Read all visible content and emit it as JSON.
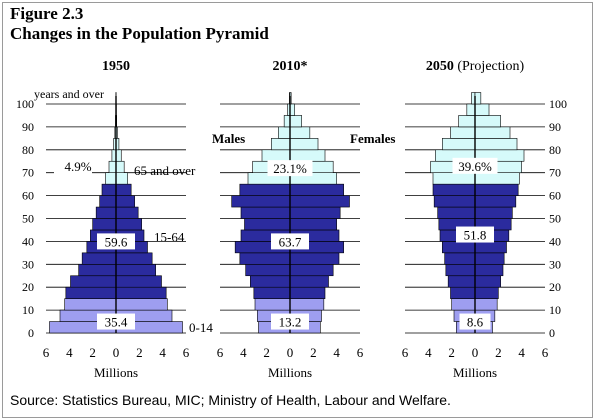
{
  "figure_label": "Figure 2.3",
  "title": "Changes in the Population Pyramid",
  "source": "Source:  Statistics Bureau, MIC;  Ministry of Health, Labour and Welfare.",
  "colors": {
    "age_0_14": "#9e9ef0",
    "age_15_64": "#2b2b9e",
    "age_65_over": "#d6fafa",
    "outline": "#000000"
  },
  "chart_data": [
    {
      "type": "bar",
      "subtype": "population-pyramid",
      "title": "1950",
      "title_suffix": "",
      "xlabel": "Millions",
      "x_ticks": [
        "6",
        "4",
        "2",
        "0",
        "2",
        "4",
        "6"
      ],
      "xlim": [
        -6,
        6
      ],
      "y_ticks": [
        "0",
        "10",
        "20",
        "30",
        "40",
        "50",
        "60",
        "70",
        "80",
        "90",
        "100"
      ],
      "y_tick_side": "left",
      "top_label": "years and over",
      "ylim": [
        0,
        100
      ],
      "grid": "horizontal",
      "age_bands": [
        0,
        5,
        10,
        15,
        20,
        25,
        30,
        35,
        40,
        45,
        50,
        55,
        60,
        65,
        70,
        75,
        80,
        85,
        90,
        95,
        100
      ],
      "males": [
        5.7,
        4.8,
        4.4,
        4.3,
        3.9,
        3.2,
        2.9,
        2.5,
        2.2,
        2.0,
        1.7,
        1.4,
        1.2,
        0.9,
        0.6,
        0.35,
        0.2,
        0.1,
        0.05,
        0.02,
        0.01
      ],
      "females": [
        5.7,
        4.8,
        4.4,
        4.3,
        3.9,
        3.4,
        3.1,
        2.7,
        2.4,
        2.2,
        1.9,
        1.6,
        1.3,
        1.0,
        0.7,
        0.45,
        0.25,
        0.12,
        0.06,
        0.03,
        0.01
      ],
      "shares": [
        {
          "group": "0-14",
          "percent": "35.4",
          "label": "0-14",
          "y": 5
        },
        {
          "group": "15-64",
          "percent": "59.6",
          "label": "15-64",
          "y": 40
        },
        {
          "group": "65 and over",
          "percent": "4.9%",
          "label": "65 and over",
          "y": 73
        }
      ],
      "side_labels": {
        "left": "",
        "right": ""
      }
    },
    {
      "type": "bar",
      "subtype": "population-pyramid",
      "title": "2010",
      "title_suffix": "*",
      "xlabel": "Millions",
      "x_ticks": [
        "6",
        "4",
        "2",
        "0",
        "2",
        "4",
        "6"
      ],
      "xlim": [
        -6,
        6
      ],
      "y_ticks": [],
      "y_tick_side": "none",
      "top_label": "",
      "ylim": [
        0,
        100
      ],
      "grid": "horizontal",
      "age_bands": [
        0,
        5,
        10,
        15,
        20,
        25,
        30,
        35,
        40,
        45,
        50,
        55,
        60,
        65,
        70,
        75,
        80,
        85,
        90,
        95,
        100
      ],
      "males": [
        2.7,
        2.8,
        3.0,
        3.1,
        3.4,
        3.8,
        4.3,
        4.7,
        4.2,
        3.9,
        4.2,
        5.0,
        4.3,
        3.6,
        3.2,
        2.4,
        1.6,
        1.0,
        0.5,
        0.2,
        0.05
      ],
      "females": [
        2.6,
        2.7,
        2.9,
        3.0,
        3.3,
        3.7,
        4.2,
        4.6,
        4.2,
        4.0,
        4.3,
        5.1,
        4.6,
        4.0,
        3.7,
        3.0,
        2.4,
        1.7,
        1.0,
        0.4,
        0.1
      ],
      "shares": [
        {
          "group": "0-14",
          "percent": "13.2",
          "label": "",
          "y": 5
        },
        {
          "group": "15-64",
          "percent": "63.7",
          "label": "",
          "y": 40
        },
        {
          "group": "65 and over",
          "percent": "23.1%",
          "label": "",
          "y": 72
        }
      ],
      "side_labels": {
        "left": "Males",
        "right": "Females"
      }
    },
    {
      "type": "bar",
      "subtype": "population-pyramid",
      "title": "2050",
      "title_suffix": " (Projection)",
      "xlabel": "Millions",
      "x_ticks": [
        "6",
        "4",
        "2",
        "0",
        "2",
        "4",
        "6"
      ],
      "xlim": [
        -6,
        6
      ],
      "y_ticks": [
        "0",
        "10",
        "20",
        "30",
        "40",
        "50",
        "60",
        "70",
        "80",
        "90",
        "100"
      ],
      "y_tick_side": "right",
      "top_label": "",
      "ylim": [
        0,
        100
      ],
      "grid": "horizontal",
      "age_bands": [
        0,
        5,
        10,
        15,
        20,
        25,
        30,
        35,
        40,
        45,
        50,
        55,
        60,
        65,
        70,
        75,
        80,
        85,
        90,
        95,
        100
      ],
      "males": [
        1.6,
        1.8,
        2.0,
        2.1,
        2.3,
        2.5,
        2.6,
        2.8,
        3.0,
        3.1,
        3.2,
        3.5,
        3.6,
        3.6,
        3.8,
        3.4,
        2.8,
        2.1,
        1.4,
        0.7,
        0.3
      ],
      "females": [
        1.5,
        1.7,
        1.9,
        2.0,
        2.2,
        2.4,
        2.5,
        2.7,
        2.9,
        3.1,
        3.2,
        3.5,
        3.7,
        3.8,
        4.0,
        4.2,
        3.6,
        3.0,
        2.2,
        1.2,
        0.5
      ],
      "shares": [
        {
          "group": "0-14",
          "percent": "8.6",
          "label": "",
          "y": 5
        },
        {
          "group": "15-64",
          "percent": "51.8",
          "label": "",
          "y": 43
        },
        {
          "group": "65 and over",
          "percent": "39.6%",
          "label": "",
          "y": 73
        }
      ],
      "side_labels": {
        "left": "",
        "right": ""
      }
    }
  ]
}
